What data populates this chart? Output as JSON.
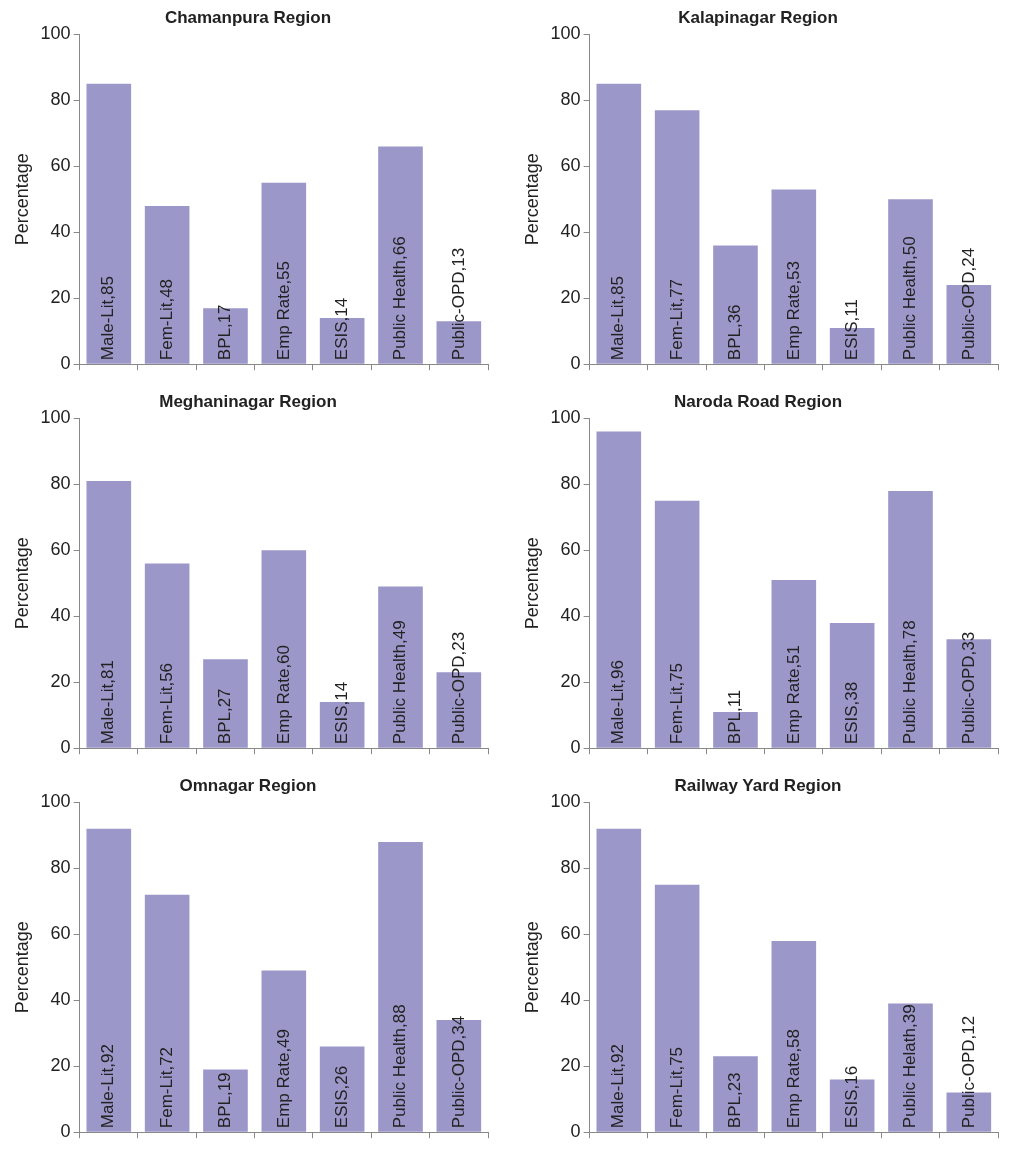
{
  "chart_data": [
    {
      "type": "bar",
      "title": "Chamanpura Region",
      "ylabel": "Percentage",
      "categories": [
        null,
        null,
        null,
        null,
        null,
        null,
        null
      ],
      "values": [
        85,
        48,
        17,
        55,
        14,
        66,
        13
      ],
      "value_labels": [
        "Male-Lit,85",
        "Fem-Lit,48",
        "BPL,17",
        "Emp Rate,55",
        "ESIS,14",
        "Public Health,66",
        "Public-OPD,13"
      ],
      "color": "#9c97c9",
      "ylim": [
        0,
        100
      ],
      "yticks": [
        0,
        20,
        40,
        60,
        80,
        100
      ],
      "tick_labels": "y",
      "legend": false,
      "grid": false
    },
    {
      "type": "bar",
      "title": "Kalapinagar Region",
      "ylabel": "Percentage",
      "categories": [
        null,
        null,
        null,
        null,
        null,
        null,
        null
      ],
      "values": [
        85,
        77,
        36,
        53,
        11,
        50,
        24
      ],
      "value_labels": [
        "Male-Lit,85",
        "Fem-Lit,77",
        "BPL,36",
        "Emp Rate,53",
        "ESIS,11",
        "Public Health,50",
        "Public-OPD,24"
      ],
      "color": "#9c97c9",
      "ylim": [
        0,
        100
      ],
      "yticks": [
        0,
        20,
        40,
        60,
        80,
        100
      ],
      "tick_labels": "y",
      "legend": false,
      "grid": false
    },
    {
      "type": "bar",
      "title": "Meghaninagar Region",
      "ylabel": "Percentage",
      "categories": [
        null,
        null,
        null,
        null,
        null,
        null,
        null
      ],
      "values": [
        81,
        56,
        27,
        60,
        14,
        49,
        23
      ],
      "value_labels": [
        "Male-Lit,81",
        "Fem-Lit,56",
        "BPL,27",
        "Emp Rate,60",
        "ESIS,14",
        "Public Health,49",
        "Public-OPD,23"
      ],
      "color": "#9c97c9",
      "ylim": [
        0,
        100
      ],
      "yticks": [
        0,
        20,
        40,
        60,
        80,
        100
      ],
      "tick_labels": "y",
      "legend": false,
      "grid": false
    },
    {
      "type": "bar",
      "title": "Naroda Road Region",
      "ylabel": "Percentage",
      "categories": [
        null,
        null,
        null,
        null,
        null,
        null,
        null
      ],
      "values": [
        96,
        75,
        11,
        51,
        38,
        78,
        33
      ],
      "value_labels": [
        "Male-Lit,96",
        "Fem-Lit,75",
        "BPL,11",
        "Emp Rate,51",
        "ESIS,38",
        "Public Health,78",
        "Public-OPD,33"
      ],
      "color": "#9c97c9",
      "ylim": [
        0,
        100
      ],
      "yticks": [
        0,
        20,
        40,
        60,
        80,
        100
      ],
      "tick_labels": "y",
      "legend": false,
      "grid": false
    },
    {
      "type": "bar",
      "title": "Omnagar Region",
      "ylabel": "Percentage",
      "categories": [
        null,
        null,
        null,
        null,
        null,
        null,
        null
      ],
      "values": [
        92,
        72,
        19,
        49,
        26,
        88,
        34
      ],
      "value_labels": [
        "Male-Lit,92",
        "Fem-Lit,72",
        "BPL,19",
        "Emp Rate,49",
        "ESIS,26",
        "Public Health,88",
        "Public-OPD,34"
      ],
      "color": "#9c97c9",
      "ylim": [
        0,
        100
      ],
      "yticks": [
        0,
        20,
        40,
        60,
        80,
        100
      ],
      "tick_labels": "y",
      "legend": false,
      "grid": false
    },
    {
      "type": "bar",
      "title": "Railway Yard Region",
      "ylabel": "Percentage",
      "categories": [
        null,
        null,
        null,
        null,
        null,
        null,
        null
      ],
      "values": [
        92,
        75,
        23,
        58,
        16,
        39,
        12
      ],
      "value_labels": [
        "Male-Lit,92",
        "Fem-Lit,75",
        "BPL,23",
        "Emp Rate,58",
        "ESIS,16",
        "Public Helath,39",
        "Public-OPD,12"
      ],
      "color": "#9c97c9",
      "ylim": [
        0,
        100
      ],
      "yticks": [
        0,
        20,
        40,
        60,
        80,
        100
      ],
      "tick_labels": "y",
      "legend": false,
      "grid": false
    }
  ]
}
